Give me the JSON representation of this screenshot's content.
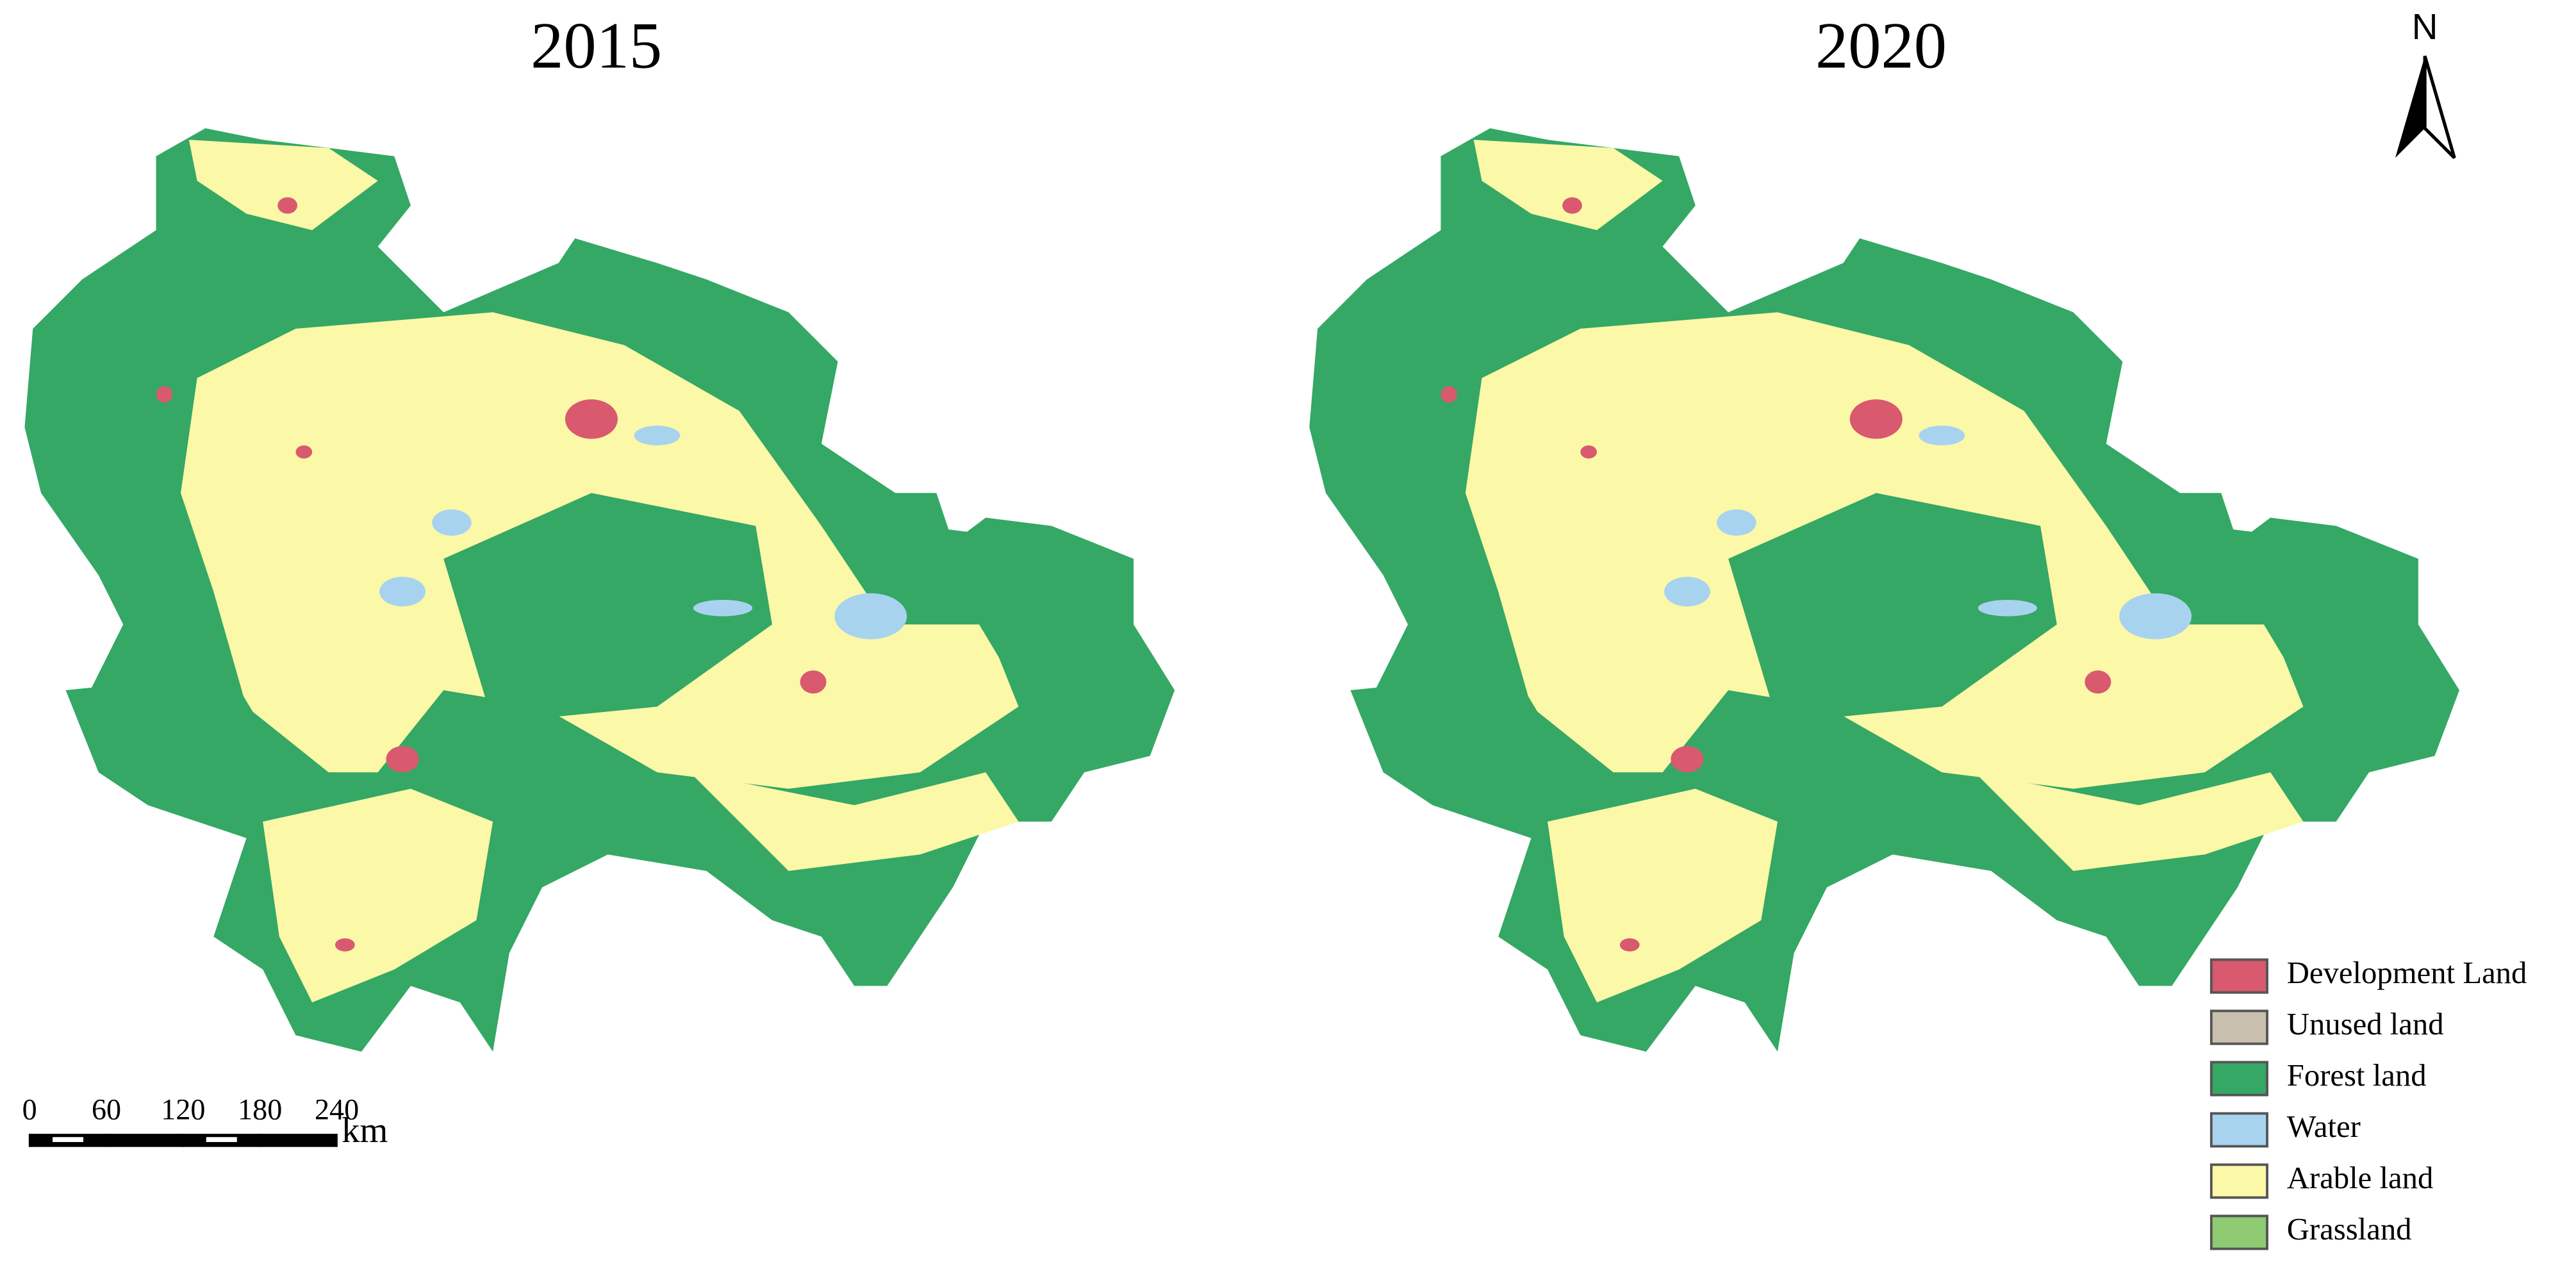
{
  "maps": [
    {
      "title": "2015"
    },
    {
      "title": "2020"
    }
  ],
  "north_arrow": "N",
  "scale_bar": {
    "ticks": [
      0,
      60,
      120,
      180,
      240
    ],
    "unit": "km"
  },
  "legend": [
    {
      "label": "Development Land",
      "color": "#d9596f"
    },
    {
      "label": "Unused land",
      "color": "#c9bfae"
    },
    {
      "label": "Forest land",
      "color": "#34a864"
    },
    {
      "label": "Water",
      "color": "#a8d3ef"
    },
    {
      "label": "Arable land",
      "color": "#fbf8a8"
    },
    {
      "label": "Grassland",
      "color": "#8ecb72"
    }
  ]
}
